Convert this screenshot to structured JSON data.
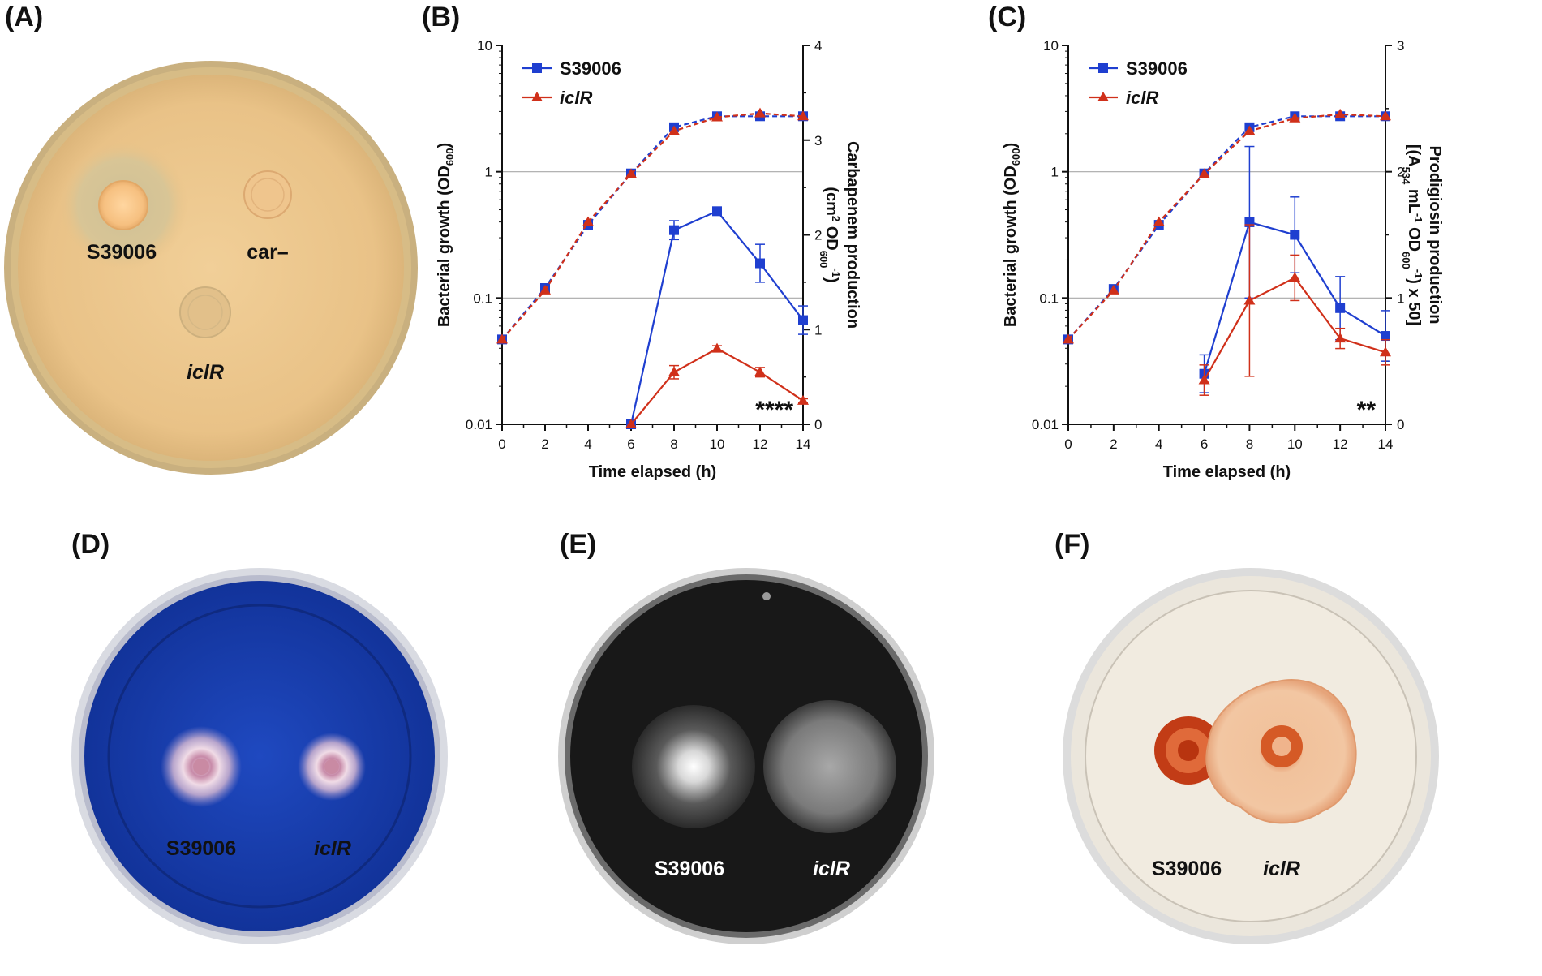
{
  "panels": {
    "a": {
      "letter": "(A)",
      "labels": {
        "strain1": "S39006",
        "strain2": "car–",
        "strain3": "iclR"
      }
    },
    "d": {
      "letter": "(D)",
      "labels": {
        "strain1": "S39006",
        "strain2": "iclR"
      }
    },
    "e": {
      "letter": "(E)",
      "labels": {
        "strain1": "S39006",
        "strain2": "iclR"
      }
    },
    "f": {
      "letter": "(F)",
      "labels": {
        "strain1": "S39006",
        "strain2": "iclR"
      }
    }
  },
  "colors": {
    "series_blue": "#1f3fd0",
    "series_red": "#d0301a",
    "plate_a_agar": "#ebc68d",
    "plate_d_agar": "#1a3fae",
    "plate_e_agar": "#141414",
    "plate_f_agar": "#efe9de"
  },
  "chart_data": [
    {
      "panel": "(B)",
      "type": "line",
      "xlabel": "Time elapsed (h)",
      "ylabel_left": "Bacterial growth (OD600)",
      "ylabel_right": "Carbapenem production (cm2 OD600-1)",
      "x_ticks": [
        "0",
        "2",
        "4",
        "6",
        "8",
        "10",
        "12",
        "14"
      ],
      "y_left_ticks": [
        "0.01",
        "0.1",
        "1",
        "10"
      ],
      "y_right_ticks": [
        "0",
        "1",
        "2",
        "3",
        "4"
      ],
      "xlim": [
        0,
        14
      ],
      "ylim_left": [
        0.01,
        10
      ],
      "ylim_right": [
        0,
        4
      ],
      "y_left_scale": "log",
      "gridlines_left": [
        0.1,
        1
      ],
      "legend": [
        "S39006",
        "iclR"
      ],
      "legend_placement": "top-left",
      "annotation": "****",
      "series": [
        {
          "name": "S39006",
          "axis": "left",
          "style": "dashed",
          "color": "blue",
          "marker": "square",
          "x": [
            0,
            2,
            4,
            6,
            8,
            10,
            12,
            14
          ],
          "y": [
            0.047,
            0.12,
            0.38,
            0.97,
            2.25,
            2.75,
            2.75,
            2.75
          ]
        },
        {
          "name": "iclR",
          "axis": "left",
          "style": "dashed",
          "color": "red",
          "marker": "triangle",
          "x": [
            0,
            2,
            4,
            6,
            8,
            10,
            12,
            14
          ],
          "y": [
            0.047,
            0.115,
            0.4,
            0.96,
            2.1,
            2.7,
            2.9,
            2.75
          ]
        },
        {
          "name": "S39006",
          "axis": "right",
          "style": "solid",
          "color": "blue",
          "marker": "square",
          "x": [
            6,
            8,
            10,
            12,
            14
          ],
          "y": [
            0,
            2.05,
            2.25,
            1.7,
            1.1
          ],
          "err": [
            0,
            0.1,
            0.04,
            0.2,
            0.15
          ]
        },
        {
          "name": "iclR",
          "axis": "right",
          "style": "solid",
          "color": "red",
          "marker": "triangle",
          "x": [
            6,
            8,
            10,
            12,
            14
          ],
          "y": [
            0,
            0.55,
            0.8,
            0.55,
            0.25
          ],
          "err": [
            0,
            0.07,
            0.03,
            0.05,
            0.02
          ]
        }
      ]
    },
    {
      "panel": "(C)",
      "type": "line",
      "xlabel": "Time elapsed (h)",
      "ylabel_left": "Bacterial growth (OD600)",
      "ylabel_right": "Prodigiosin production [(A534 mL-1 OD600-1) x 50]",
      "x_ticks": [
        "0",
        "2",
        "4",
        "6",
        "8",
        "10",
        "12",
        "14"
      ],
      "y_left_ticks": [
        "0.01",
        "0.1",
        "1",
        "10"
      ],
      "y_right_ticks": [
        "0",
        "1",
        "2",
        "3"
      ],
      "xlim": [
        0,
        14
      ],
      "ylim_left": [
        0.01,
        10
      ],
      "ylim_right": [
        0,
        3
      ],
      "y_left_scale": "log",
      "gridlines_left": [
        0.1,
        1
      ],
      "legend": [
        "S39006",
        "iclR"
      ],
      "legend_placement": "top-left",
      "annotation": "**",
      "series": [
        {
          "name": "S39006",
          "axis": "left",
          "style": "dashed",
          "color": "blue",
          "marker": "square",
          "x": [
            0,
            2,
            4,
            6,
            8,
            10,
            12,
            14
          ],
          "y": [
            0.047,
            0.118,
            0.38,
            0.97,
            2.25,
            2.75,
            2.75,
            2.75
          ]
        },
        {
          "name": "iclR",
          "axis": "left",
          "style": "dashed",
          "color": "red",
          "marker": "triangle",
          "x": [
            0,
            2,
            4,
            6,
            8,
            10,
            12,
            14
          ],
          "y": [
            0.047,
            0.115,
            0.4,
            0.96,
            2.1,
            2.65,
            2.85,
            2.75
          ]
        },
        {
          "name": "S39006",
          "axis": "right",
          "style": "solid",
          "color": "blue",
          "marker": "square",
          "x": [
            6,
            8,
            10,
            12,
            14
          ],
          "y": [
            0.4,
            1.6,
            1.5,
            0.92,
            0.7
          ],
          "err": [
            0.15,
            0.6,
            0.3,
            0.25,
            0.2
          ]
        },
        {
          "name": "iclR",
          "axis": "right",
          "style": "solid",
          "color": "red",
          "marker": "triangle",
          "x": [
            6,
            8,
            10,
            12,
            14
          ],
          "y": [
            0.35,
            0.98,
            1.16,
            0.68,
            0.57
          ],
          "err": [
            0.12,
            0.6,
            0.18,
            0.08,
            0.1
          ]
        }
      ]
    }
  ]
}
